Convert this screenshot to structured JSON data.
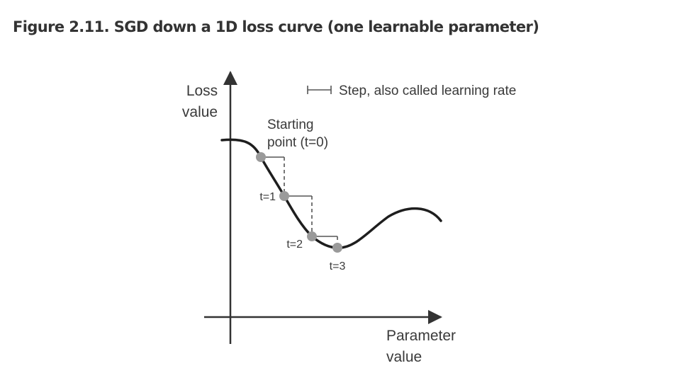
{
  "figure": {
    "title": "Figure 2.11. SGD down a 1D loss curve (one learnable parameter)"
  },
  "diagram": {
    "y_axis_label_line1": "Loss",
    "y_axis_label_line2": "value",
    "x_axis_label_line1": "Parameter",
    "x_axis_label_line2": "value",
    "legend_step_label": "Step, also called learning rate",
    "start_label_line1": "Starting",
    "start_label_line2": "point (t=0)",
    "steps": [
      {
        "label": "t=1"
      },
      {
        "label": "t=2"
      },
      {
        "label": "t=3"
      }
    ],
    "colors": {
      "curve": "#1e1e1e",
      "axes": "#333333",
      "points": "#9a9a9a",
      "step_lines": "#555555",
      "title": "#333333"
    }
  }
}
